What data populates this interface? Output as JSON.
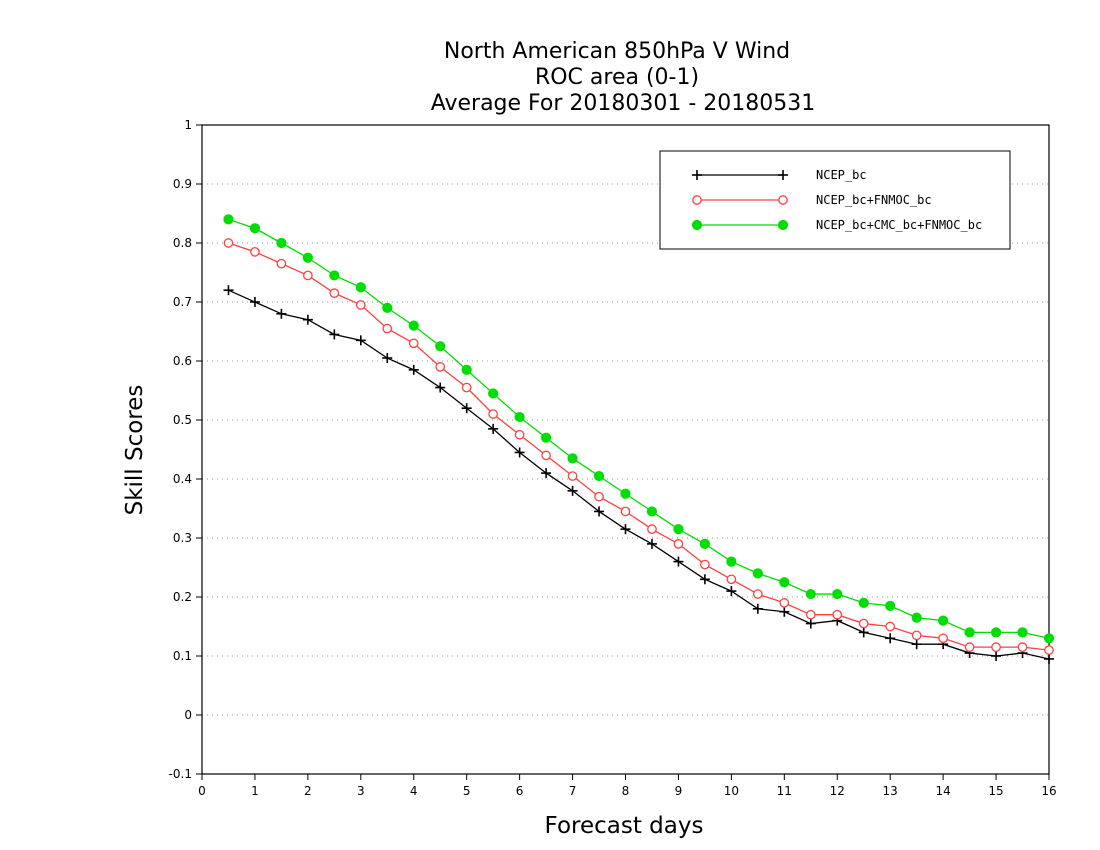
{
  "chart_data": {
    "type": "line",
    "title": [
      "North American 850hPa V Wind",
      "ROC area (0-1)",
      "Average For 20180301 - 20180531"
    ],
    "xlabel": "Forecast days",
    "ylabel": "Skill Scores",
    "xlim": [
      0,
      16
    ],
    "ylim": [
      -0.1,
      1
    ],
    "xticks": [
      "0",
      "1",
      "2",
      "3",
      "4",
      "5",
      "6",
      "7",
      "8",
      "9",
      "10",
      "11",
      "12",
      "13",
      "14",
      "15",
      "16"
    ],
    "yticks": [
      "-0.1",
      "0",
      "0.1",
      "0.2",
      "0.3",
      "0.4",
      "0.5",
      "0.6",
      "0.7",
      "0.8",
      "0.9",
      "1"
    ],
    "grid": "y-dotted",
    "legend_position": "top-right",
    "x": [
      0.5,
      1,
      1.5,
      2,
      2.5,
      3,
      3.5,
      4,
      4.5,
      5,
      5.5,
      6,
      6.5,
      7,
      7.5,
      8,
      8.5,
      9,
      9.5,
      10,
      10.5,
      11,
      11.5,
      12,
      12.5,
      13,
      13.5,
      14,
      14.5,
      15,
      15.5,
      16
    ],
    "series": [
      {
        "name": "NCEP_bc",
        "color": "#000000",
        "marker": "plus",
        "values": [
          0.72,
          0.7,
          0.68,
          0.67,
          0.645,
          0.635,
          0.605,
          0.585,
          0.555,
          0.52,
          0.485,
          0.445,
          0.41,
          0.38,
          0.345,
          0.315,
          0.29,
          0.26,
          0.23,
          0.21,
          0.18,
          0.175,
          0.155,
          0.16,
          0.14,
          0.13,
          0.12,
          0.12,
          0.105,
          0.1,
          0.105,
          0.095
        ]
      },
      {
        "name": "NCEP_bc+FNMOC_bc",
        "color": "#ff4040",
        "marker": "open-circle",
        "values": [
          0.8,
          0.785,
          0.765,
          0.745,
          0.715,
          0.695,
          0.655,
          0.63,
          0.59,
          0.555,
          0.51,
          0.475,
          0.44,
          0.405,
          0.37,
          0.345,
          0.315,
          0.29,
          0.255,
          0.23,
          0.205,
          0.19,
          0.17,
          0.17,
          0.155,
          0.15,
          0.135,
          0.13,
          0.115,
          0.115,
          0.115,
          0.11
        ]
      },
      {
        "name": "NCEP_bc+CMC_bc+FNMOC_bc",
        "color": "#00dd00",
        "marker": "filled-circle",
        "values": [
          0.84,
          0.825,
          0.8,
          0.775,
          0.745,
          0.725,
          0.69,
          0.66,
          0.625,
          0.585,
          0.545,
          0.505,
          0.47,
          0.435,
          0.405,
          0.375,
          0.345,
          0.315,
          0.29,
          0.26,
          0.24,
          0.225,
          0.205,
          0.205,
          0.19,
          0.185,
          0.165,
          0.16,
          0.14,
          0.14,
          0.14,
          0.13
        ]
      }
    ]
  }
}
